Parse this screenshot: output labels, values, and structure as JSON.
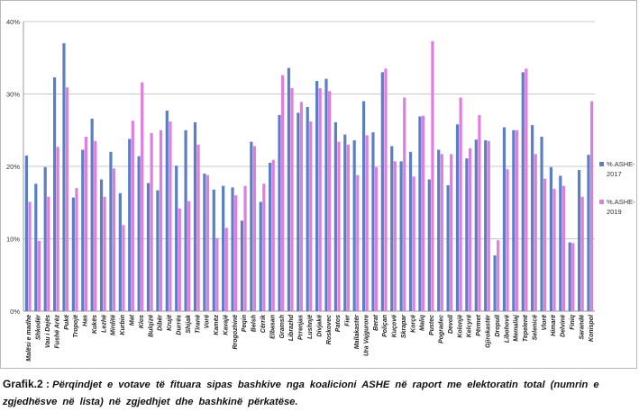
{
  "chart_data": {
    "type": "bar",
    "ylim": [
      0,
      40
    ],
    "yticks": [
      "0%",
      "10%",
      "20%",
      "30%",
      "40%"
    ],
    "grid": true,
    "legend_position": "right",
    "categories": [
      "Malësi e madhe",
      "Shkodër",
      "Vau i Dejës",
      "Fushë Arëz",
      "Pukë",
      "Tropojë",
      "Has",
      "Kukës",
      "Lezhë",
      "Mirditë",
      "Kurbin",
      "Mat",
      "Klos",
      "Bulqizë",
      "Dibër",
      "Krujë",
      "Durrës",
      "Shijak",
      "Tiranë",
      "Vorë",
      "Kamëz",
      "Kavajë",
      "Rrogozhinë",
      "Peqin",
      "Belsh",
      "Cërrik",
      "Elbasan",
      "Gramsh",
      "Librazhd",
      "Prrenjas",
      "Lushnjë",
      "Divjakë",
      "Roskovec",
      "Patos",
      "Fier",
      "Mallakastër",
      "Ura Vajgurore",
      "Berat",
      "Poliçan",
      "Kuçovë",
      "Skrapar",
      "Korçë",
      "Maliq",
      "Pustec",
      "Pogradec",
      "Devoll",
      "Kolonjë",
      "Kelcyrë",
      "Përmet",
      "Gjirokastër",
      "Dropull",
      "Libohovë",
      "Memaliaj",
      "Tepelenë",
      "Selenicë",
      "Vlorë",
      "Himarë",
      "Delvinë",
      "Finiq",
      "Sarandë",
      "Konispol"
    ],
    "series": [
      {
        "name": "%.ASHE-2017",
        "color": "#5b7fc4",
        "values": [
          21.5,
          17.6,
          19.9,
          32.3,
          37.0,
          15.7,
          22.3,
          26.6,
          18.2,
          22.0,
          16.3,
          23.8,
          21.4,
          17.7,
          16.7,
          27.7,
          20.1,
          25.0,
          26.1,
          19.0,
          16.8,
          17.3,
          17.1,
          12.5,
          23.4,
          15.1,
          20.5,
          27.1,
          33.6,
          27.4,
          28.2,
          31.8,
          32.1,
          26.1,
          24.4,
          23.6,
          29.0,
          24.7,
          33.0,
          22.8,
          20.7,
          22.0,
          26.9,
          18.2,
          22.3,
          17.4,
          25.8,
          21.1,
          23.7,
          23.6,
          7.7,
          25.4,
          25.0,
          33.0,
          25.7,
          24.1,
          19.9,
          18.7,
          9.5,
          19.5,
          21.6
        ]
      },
      {
        "name": "%.ASHE-2019",
        "color": "#e07de0",
        "values": [
          15.1,
          9.7,
          15.8,
          22.7,
          30.9,
          17.0,
          24.1,
          23.5,
          15.8,
          19.7,
          11.9,
          26.3,
          31.6,
          24.6,
          25.0,
          26.2,
          14.2,
          15.2,
          23.0,
          18.8,
          10.1,
          11.5,
          16.0,
          17.3,
          22.8,
          17.6,
          20.9,
          32.6,
          30.8,
          28.9,
          26.2,
          30.8,
          30.4,
          23.4,
          23.0,
          18.8,
          24.3,
          19.9,
          33.5,
          20.7,
          29.5,
          18.6,
          27.0,
          37.3,
          21.7,
          21.7,
          29.5,
          22.5,
          27.1,
          23.5,
          9.8,
          19.6,
          25.0,
          33.5,
          21.7,
          18.3,
          16.9,
          17.3,
          9.4,
          15.8,
          29.0
        ]
      }
    ]
  },
  "caption": {
    "label": "Grafik.2 :",
    "text": "Përqindjet e votave të fituara sipas bashkive nga koalicioni ASHE në raport me elektoratin total (numrin e zgjedhësve në lista) në zgjedhjet dhe bashkinë përkatëse."
  }
}
